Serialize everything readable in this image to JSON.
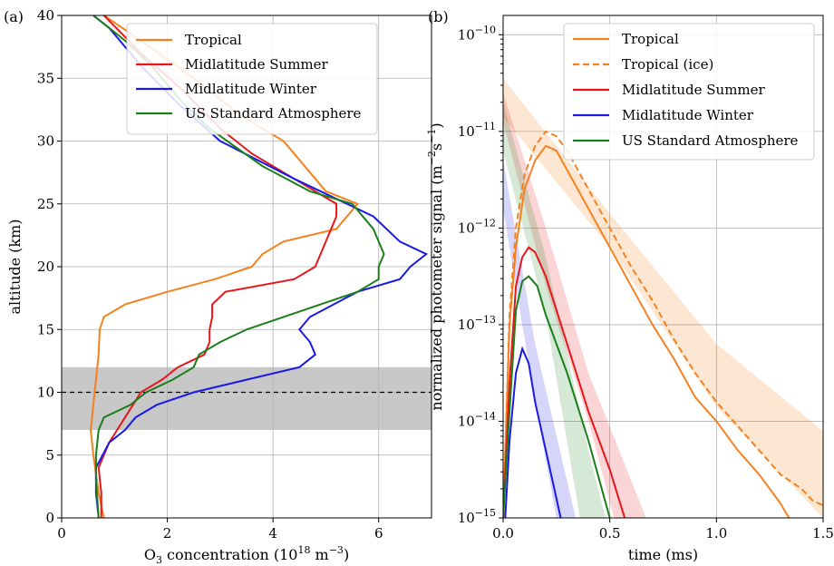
{
  "colors": {
    "tropical": "#f5811e",
    "mid_summer": "#e8161a",
    "mid_winter": "#1a1ae8",
    "us_standard": "#1a7f1a",
    "tropopause_band": "#c8c8c8"
  },
  "chart_data": [
    {
      "type": "line",
      "panel_label": "(a)",
      "xlabel_main": "O",
      "xlabel_sub": "3",
      "xlabel_rest": " concentration (10",
      "xlabel_sup": "18",
      "xlabel_unit": " m",
      "xlabel_unit_sup": "−3",
      "xlabel_end": ")",
      "ylabel": "altitude (km)",
      "xlim": [
        0,
        7
      ],
      "ylim": [
        0,
        40
      ],
      "xticks": [
        0,
        2,
        4,
        6
      ],
      "yticks": [
        0,
        5,
        10,
        15,
        20,
        25,
        30,
        35,
        40
      ],
      "grid": true,
      "legend_position": "top-right",
      "shaded_band": [
        7,
        12
      ],
      "hline": 10,
      "series": [
        {
          "name": "Tropical",
          "color_key": "tropical",
          "points": [
            [
              0.8,
              0
            ],
            [
              0.7,
              2
            ],
            [
              0.6,
              5
            ],
            [
              0.55,
              7
            ],
            [
              0.6,
              9
            ],
            [
              0.65,
              11
            ],
            [
              0.7,
              13
            ],
            [
              0.72,
              15
            ],
            [
              0.8,
              16
            ],
            [
              1.2,
              17
            ],
            [
              2.0,
              18
            ],
            [
              2.9,
              19
            ],
            [
              3.6,
              20
            ],
            [
              3.8,
              21
            ],
            [
              4.2,
              22
            ],
            [
              5.2,
              23
            ],
            [
              5.4,
              24
            ],
            [
              5.6,
              25
            ],
            [
              5.0,
              26
            ],
            [
              4.6,
              28
            ],
            [
              4.2,
              30
            ],
            [
              3.4,
              32
            ],
            [
              2.5,
              35
            ],
            [
              1.5,
              38
            ],
            [
              0.8,
              40
            ]
          ]
        },
        {
          "name": "Midlatitude Summer",
          "color_key": "mid_summer",
          "points": [
            [
              0.75,
              0
            ],
            [
              0.75,
              2
            ],
            [
              0.7,
              4
            ],
            [
              0.9,
              6
            ],
            [
              1.2,
              8
            ],
            [
              1.5,
              10
            ],
            [
              1.9,
              11
            ],
            [
              2.2,
              12
            ],
            [
              2.7,
              13
            ],
            [
              2.8,
              14
            ],
            [
              2.8,
              15
            ],
            [
              2.85,
              16
            ],
            [
              2.85,
              17
            ],
            [
              3.1,
              18
            ],
            [
              4.4,
              19
            ],
            [
              4.8,
              20
            ],
            [
              4.9,
              21
            ],
            [
              5.1,
              23
            ],
            [
              5.2,
              24
            ],
            [
              5.2,
              25
            ],
            [
              4.4,
              27
            ],
            [
              3.6,
              29
            ],
            [
              3.0,
              31
            ],
            [
              2.3,
              34
            ],
            [
              1.5,
              37
            ],
            [
              0.8,
              40
            ]
          ]
        },
        {
          "name": "Midlatitude Winter",
          "color_key": "mid_winter",
          "points": [
            [
              0.7,
              0
            ],
            [
              0.65,
              2
            ],
            [
              0.65,
              4
            ],
            [
              0.9,
              6
            ],
            [
              1.2,
              7
            ],
            [
              1.4,
              8
            ],
            [
              1.8,
              9
            ],
            [
              2.5,
              10
            ],
            [
              3.5,
              11
            ],
            [
              4.5,
              12
            ],
            [
              4.8,
              13
            ],
            [
              4.7,
              14
            ],
            [
              4.5,
              15
            ],
            [
              4.7,
              16
            ],
            [
              5.6,
              18
            ],
            [
              6.4,
              19
            ],
            [
              6.6,
              20
            ],
            [
              6.9,
              21
            ],
            [
              6.4,
              22
            ],
            [
              5.9,
              24
            ],
            [
              5.4,
              25
            ],
            [
              4.4,
              27
            ],
            [
              3.0,
              30
            ],
            [
              2.2,
              33
            ],
            [
              1.5,
              36
            ],
            [
              0.9,
              39
            ],
            [
              0.6,
              40
            ]
          ]
        },
        {
          "name": "US Standard Atmosphere",
          "color_key": "us_standard",
          "points": [
            [
              0.7,
              0
            ],
            [
              0.65,
              3
            ],
            [
              0.65,
              5
            ],
            [
              0.7,
              7
            ],
            [
              0.8,
              8
            ],
            [
              1.3,
              9
            ],
            [
              1.6,
              10
            ],
            [
              2.1,
              11
            ],
            [
              2.5,
              12
            ],
            [
              2.6,
              13
            ],
            [
              3.0,
              14
            ],
            [
              3.5,
              15
            ],
            [
              4.2,
              16
            ],
            [
              4.9,
              17
            ],
            [
              5.6,
              18
            ],
            [
              6.0,
              19
            ],
            [
              6.0,
              20
            ],
            [
              6.1,
              21
            ],
            [
              5.9,
              23
            ],
            [
              5.5,
              25
            ],
            [
              4.7,
              26
            ],
            [
              3.8,
              28
            ],
            [
              2.8,
              31
            ],
            [
              2.3,
              33
            ],
            [
              1.7,
              36
            ],
            [
              1.2,
              38
            ],
            [
              0.6,
              40
            ]
          ]
        }
      ],
      "legend": [
        "Tropical",
        "Midlatitude Summer",
        "Midlatitude Winter",
        "US Standard Atmosphere"
      ]
    },
    {
      "type": "line",
      "panel_label": "(b)",
      "xlabel": "time (ms)",
      "ylabel_main": "normalized photometer signal (m",
      "ylabel_sup1": "−2",
      "ylabel_mid": "s",
      "ylabel_sup2": "−1",
      "ylabel_end": ")",
      "xlim": [
        0,
        1.5
      ],
      "ylim_log10": [
        -15,
        -9.8
      ],
      "y_scale": "log",
      "xticks": [
        "0.0",
        "0.5",
        "1.0",
        "1.5"
      ],
      "yticks": [
        {
          "base": "10",
          "exp": "−10",
          "log": -10
        },
        {
          "base": "10",
          "exp": "−11",
          "log": -11
        },
        {
          "base": "10",
          "exp": "−12",
          "log": -12
        },
        {
          "base": "10",
          "exp": "−13",
          "log": -13
        },
        {
          "base": "10",
          "exp": "−14",
          "log": -14
        },
        {
          "base": "10",
          "exp": "−15",
          "log": -15
        }
      ],
      "grid": true,
      "legend_position": "top-right",
      "series": [
        {
          "name": "Tropical",
          "color_key": "tropical",
          "dash": false,
          "points_log10": [
            [
              0.0,
              -15
            ],
            [
              0.03,
              -13.0
            ],
            [
              0.06,
              -12.2
            ],
            [
              0.1,
              -11.6
            ],
            [
              0.15,
              -11.3
            ],
            [
              0.2,
              -11.15
            ],
            [
              0.25,
              -11.2
            ],
            [
              0.3,
              -11.4
            ],
            [
              0.4,
              -11.8
            ],
            [
              0.5,
              -12.2
            ],
            [
              0.6,
              -12.6
            ],
            [
              0.7,
              -13.0
            ],
            [
              0.8,
              -13.35
            ],
            [
              0.9,
              -13.75
            ],
            [
              1.0,
              -14.0
            ],
            [
              1.1,
              -14.3
            ],
            [
              1.2,
              -14.55
            ],
            [
              1.3,
              -14.85
            ],
            [
              1.34,
              -15
            ]
          ]
        },
        {
          "name": "Tropical (ice)",
          "color_key": "tropical",
          "dash": true,
          "points_log10": [
            [
              0.0,
              -15
            ],
            [
              0.03,
              -12.9
            ],
            [
              0.06,
              -12.0
            ],
            [
              0.1,
              -11.45
            ],
            [
              0.15,
              -11.15
            ],
            [
              0.2,
              -11.0
            ],
            [
              0.25,
              -11.05
            ],
            [
              0.3,
              -11.2
            ],
            [
              0.4,
              -11.6
            ],
            [
              0.5,
              -12.0
            ],
            [
              0.6,
              -12.4
            ],
            [
              0.7,
              -12.75
            ],
            [
              0.8,
              -13.15
            ],
            [
              0.9,
              -13.5
            ],
            [
              1.0,
              -13.8
            ],
            [
              1.1,
              -14.05
            ],
            [
              1.2,
              -14.3
            ],
            [
              1.3,
              -14.55
            ],
            [
              1.4,
              -14.7
            ],
            [
              1.45,
              -14.82
            ],
            [
              1.5,
              -14.87
            ]
          ]
        },
        {
          "name": "Midlatitude Summer",
          "color_key": "mid_summer",
          "dash": false,
          "points_log10": [
            [
              0.0,
              -15
            ],
            [
              0.03,
              -13.6
            ],
            [
              0.06,
              -12.6
            ],
            [
              0.09,
              -12.3
            ],
            [
              0.12,
              -12.2
            ],
            [
              0.15,
              -12.25
            ],
            [
              0.2,
              -12.5
            ],
            [
              0.3,
              -13.2
            ],
            [
              0.4,
              -13.9
            ],
            [
              0.5,
              -14.5
            ],
            [
              0.57,
              -15
            ]
          ]
        },
        {
          "name": "Midlatitude Winter",
          "color_key": "mid_winter",
          "dash": false,
          "points_log10": [
            [
              0.01,
              -15
            ],
            [
              0.03,
              -14.2
            ],
            [
              0.06,
              -13.5
            ],
            [
              0.09,
              -13.25
            ],
            [
              0.12,
              -13.4
            ],
            [
              0.15,
              -13.8
            ],
            [
              0.2,
              -14.3
            ],
            [
              0.27,
              -15
            ]
          ]
        },
        {
          "name": "US Standard Atmosphere",
          "color_key": "us_standard",
          "dash": false,
          "points_log10": [
            [
              0.0,
              -15
            ],
            [
              0.03,
              -13.9
            ],
            [
              0.06,
              -12.85
            ],
            [
              0.09,
              -12.55
            ],
            [
              0.12,
              -12.5
            ],
            [
              0.16,
              -12.6
            ],
            [
              0.2,
              -12.9
            ],
            [
              0.3,
              -13.5
            ],
            [
              0.4,
              -14.2
            ],
            [
              0.5,
              -15
            ]
          ]
        }
      ],
      "bands": [
        {
          "color_key": "tropical",
          "opacity": 0.2,
          "upper_log10": [
            [
              0.0,
              -10.45
            ],
            [
              0.5,
              -11.85
            ],
            [
              1.0,
              -13.2
            ],
            [
              1.5,
              -14.1
            ]
          ],
          "lower_log10": [
            [
              0.0,
              -10.85
            ],
            [
              0.5,
              -12.2
            ],
            [
              1.0,
              -13.85
            ],
            [
              1.5,
              -15.0
            ]
          ]
        },
        {
          "color_key": "mid_summer",
          "opacity": 0.18,
          "upper_log10": [
            [
              0.0,
              -10.6
            ],
            [
              0.2,
              -12.0
            ],
            [
              0.4,
              -13.5
            ],
            [
              0.67,
              -15.0
            ]
          ],
          "lower_log10": [
            [
              0.0,
              -10.9
            ],
            [
              0.2,
              -12.6
            ],
            [
              0.4,
              -14.0
            ],
            [
              0.52,
              -15.0
            ]
          ]
        },
        {
          "color_key": "us_standard",
          "opacity": 0.18,
          "upper_log10": [
            [
              0.0,
              -10.7
            ],
            [
              0.2,
              -12.3
            ],
            [
              0.4,
              -14.3
            ],
            [
              0.48,
              -15.0
            ]
          ],
          "lower_log10": [
            [
              0.0,
              -11.2
            ],
            [
              0.2,
              -12.9
            ],
            [
              0.36,
              -15.0
            ]
          ]
        },
        {
          "color_key": "mid_winter",
          "opacity": 0.18,
          "upper_log10": [
            [
              0.0,
              -11.3
            ],
            [
              0.15,
              -13.2
            ],
            [
              0.34,
              -15.0
            ]
          ],
          "lower_log10": [
            [
              0.0,
              -11.8
            ],
            [
              0.15,
              -13.8
            ],
            [
              0.25,
              -15.0
            ]
          ]
        }
      ],
      "legend": [
        "Tropical",
        "Tropical (ice)",
        "Midlatitude Summer",
        "Midlatitude Winter",
        "US Standard Atmosphere"
      ]
    }
  ]
}
